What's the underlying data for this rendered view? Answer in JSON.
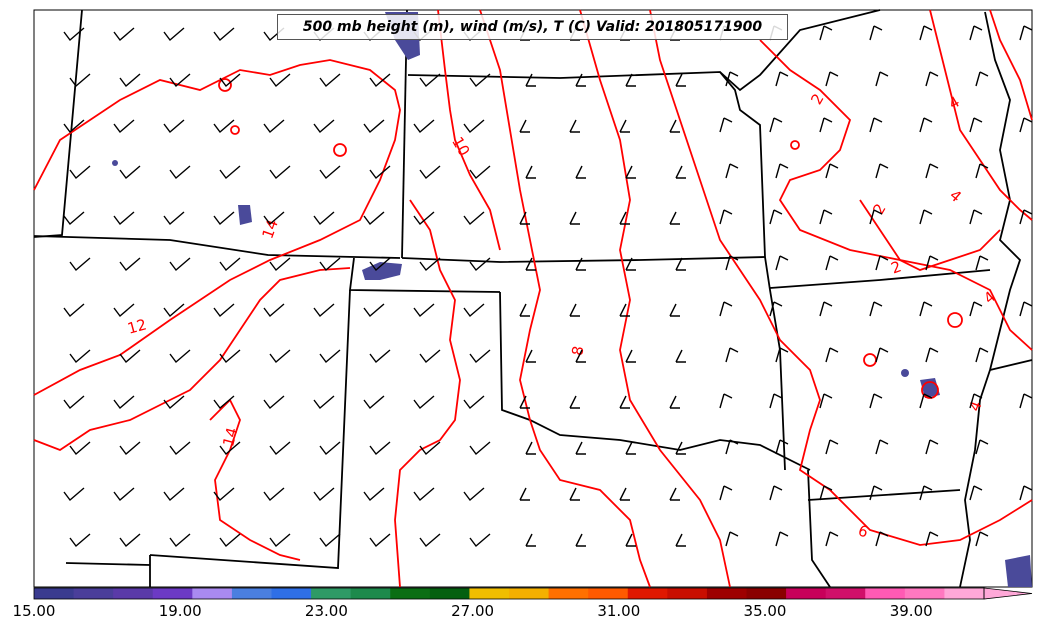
{
  "title": "500 mb height (m), wind (m/s), T (C) Valid: 201805171900",
  "contour_labels": [
    "10",
    "14",
    "12",
    "14",
    "8",
    "2",
    "4",
    "4",
    "2",
    "2",
    "4",
    "6",
    "4"
  ],
  "colorbar": {
    "tick_labels": [
      "15.00",
      "19.00",
      "23.00",
      "27.00",
      "31.00",
      "35.00",
      "39.00"
    ],
    "colors": [
      "#3a3b8f",
      "#4a3e9a",
      "#5a3aa8",
      "#6c3ac4",
      "#a98af0",
      "#4a7fe0",
      "#2f6fe6",
      "#2e9a66",
      "#1d8a4c",
      "#0b6e14",
      "#056010",
      "#f0be00",
      "#f4b000",
      "#ff7000",
      "#ff5a00",
      "#e01800",
      "#c90e00",
      "#9e0000",
      "#8a0000",
      "#c8005a",
      "#d0106a",
      "#ff5ab4",
      "#ff78c0",
      "#ffa8d8"
    ]
  },
  "colors": {
    "temperature_contour": "#ff0000",
    "boundaries": "#000000",
    "wind_barbs": "#000000",
    "wind_shading": "#4a4a9a"
  }
}
